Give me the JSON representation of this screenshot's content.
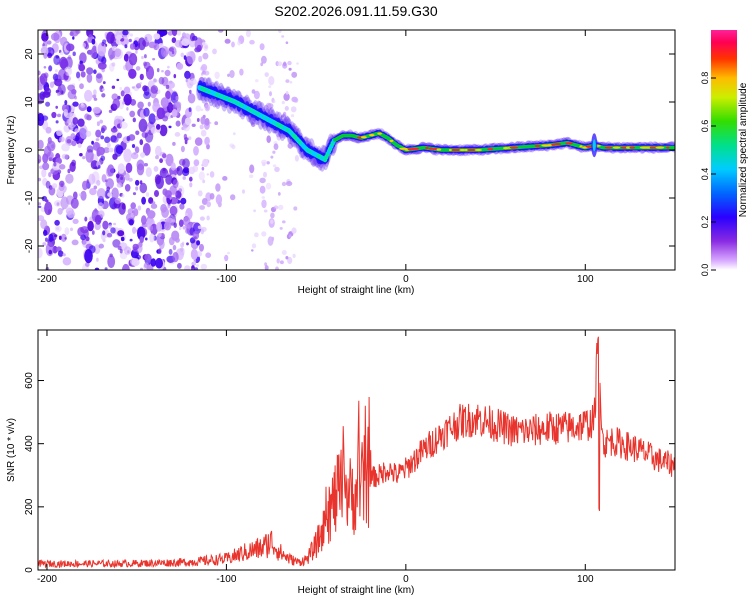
{
  "title": "S202.2026.091.11.59.G30",
  "colors": {
    "snr_line": "#e8342c",
    "frame": "#000000",
    "track_core": "#00cc33",
    "track_peak": "#ff2222"
  },
  "colorbar": {
    "label": "Normalized spectral amplitude",
    "ticks": [
      "0.0",
      "0.2",
      "0.4",
      "0.6",
      "0.8"
    ],
    "tick_values": [
      0.0,
      0.2,
      0.4,
      0.6,
      0.8
    ],
    "range": [
      0,
      1
    ]
  },
  "chart_data": [
    {
      "type": "heatmap",
      "title": "S202.2026.091.11.59.G30",
      "xlabel": "Height of straight line (km)",
      "ylabel": "Frequency (Hz)",
      "xlim": [
        -205,
        150
      ],
      "ylim": [
        -25,
        25
      ],
      "xticks": [
        -200,
        -100,
        0,
        100
      ],
      "xtick_labels": [
        "-200",
        "-100",
        "0",
        "100"
      ],
      "yticks": [
        -20,
        -10,
        0,
        10,
        20
      ],
      "ytick_labels": [
        "-20",
        "-10",
        "0",
        "10",
        "20"
      ],
      "doppler_track": {
        "x": [
          -115,
          -105,
          -95,
          -85,
          -75,
          -65,
          -60,
          -55,
          -50,
          -45,
          -40,
          -35,
          -30,
          -25,
          -20,
          -15,
          -10,
          -5,
          0,
          10,
          20,
          40,
          60,
          80,
          90,
          100,
          105,
          110,
          120,
          150
        ],
        "y": [
          13,
          11.5,
          10,
          8,
          6,
          4,
          2,
          0,
          -1,
          -2,
          2,
          3,
          3,
          2.5,
          3,
          3.5,
          2.5,
          1,
          0,
          0.5,
          0,
          0,
          0.5,
          1,
          1.5,
          0.5,
          1,
          0.5,
          0.5,
          0.5
        ]
      },
      "noise_region": {
        "x_from": -205,
        "x_to": -60,
        "y_from": -25,
        "y_to": 25
      }
    },
    {
      "type": "line",
      "xlabel": "Height of straight line (km)",
      "ylabel": "SNR (10 * v/v)",
      "xlim": [
        -205,
        150
      ],
      "ylim": [
        0,
        760
      ],
      "xticks": [
        -200,
        -100,
        0,
        100
      ],
      "xtick_labels": [
        "-200",
        "-100",
        "0",
        "100"
      ],
      "yticks": [
        0,
        200,
        400,
        600
      ],
      "ytick_labels": [
        "0",
        "200",
        "400",
        "600"
      ],
      "series": [
        {
          "name": "SNR",
          "x": [
            -205,
            -180,
            -160,
            -140,
            -120,
            -100,
            -90,
            -80,
            -75,
            -70,
            -65,
            -60,
            -55,
            -50,
            -45,
            -40,
            -35,
            -30,
            -25,
            -20,
            -15,
            -10,
            -5,
            0,
            10,
            20,
            30,
            40,
            50,
            60,
            70,
            80,
            90,
            100,
            105,
            107,
            110,
            115,
            120,
            130,
            140,
            150
          ],
          "y": [
            20,
            20,
            20,
            22,
            25,
            35,
            55,
            70,
            90,
            55,
            35,
            25,
            35,
            80,
            140,
            220,
            260,
            230,
            270,
            290,
            300,
            320,
            300,
            320,
            380,
            430,
            470,
            480,
            460,
            440,
            440,
            450,
            450,
            460,
            470,
            720,
            400,
            410,
            400,
            380,
            350,
            330
          ]
        }
      ]
    }
  ]
}
